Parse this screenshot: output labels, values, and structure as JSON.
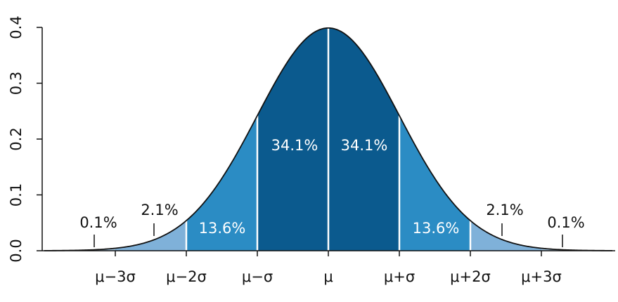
{
  "chart_data": {
    "type": "density",
    "xlim": [
      -4,
      4
    ],
    "xticks": [
      {
        "value": -3,
        "label": "μ−3σ"
      },
      {
        "value": -2,
        "label": "μ−2σ"
      },
      {
        "value": -1,
        "label": "μ−σ"
      },
      {
        "value": 0,
        "label": "μ"
      },
      {
        "value": 1,
        "label": "μ+σ"
      },
      {
        "value": 2,
        "label": "μ+2σ"
      },
      {
        "value": 3,
        "label": "μ+3σ"
      }
    ],
    "ylim": [
      0,
      0.4
    ],
    "yticks": [
      {
        "value": 0,
        "label": "0.0"
      },
      0.1,
      0.2,
      0.3,
      0.4
    ],
    "segments": {
      "values": [
        0.1,
        2.1,
        13.6,
        34.1,
        34.1,
        13.6,
        2.1,
        0.1
      ],
      "value_labels": [
        "0.1%",
        "2.1%",
        "13.6%",
        "34.1%",
        "34.1%",
        "13.6%",
        "2.1%",
        "0.1%"
      ],
      "colors": [
        "#a9cbe6",
        "#7fb1d9",
        "#2b8cc4",
        "#0b5a8e",
        "#0b5a8e",
        "#2b8cc4",
        "#7fb1d9",
        "#a9cbe6"
      ]
    },
    "grid": false
  }
}
